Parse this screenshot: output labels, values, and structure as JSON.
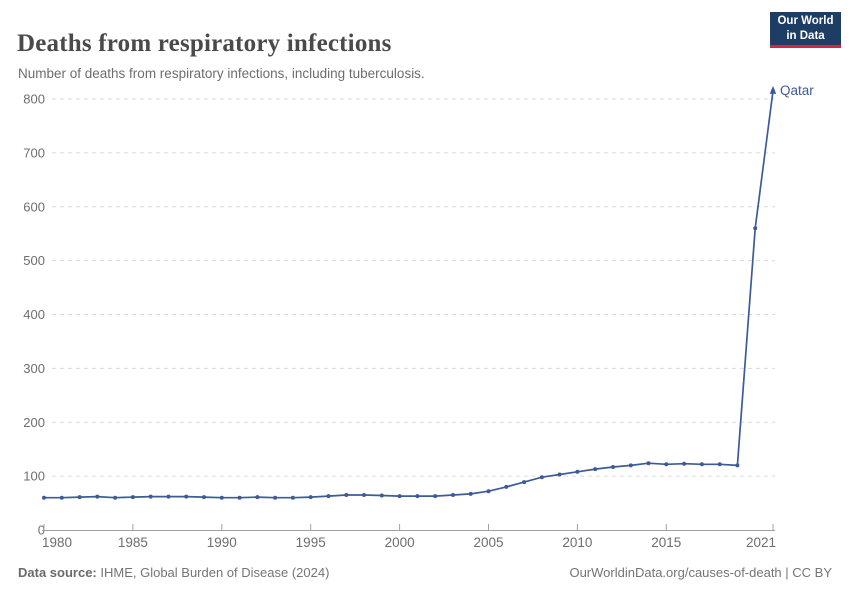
{
  "header": {
    "title": "Deaths from respiratory infections",
    "subtitle": "Number of deaths from respiratory infections, including tuberculosis."
  },
  "logo": {
    "line1": "Our World",
    "line2": "in Data",
    "bg_color": "#1d3d63",
    "accent_color": "#d5263a"
  },
  "footer": {
    "source_label": "Data source:",
    "source_value": " IHME, Global Burden of Disease (2024)",
    "license_text": "OurWorldinData.org/causes-of-death | CC BY"
  },
  "chart_data": {
    "type": "line",
    "title": "Deaths from respiratory infections",
    "subtitle": "Number of deaths from respiratory infections, including tuberculosis.",
    "x": [
      1980,
      1981,
      1982,
      1983,
      1984,
      1985,
      1986,
      1987,
      1988,
      1989,
      1990,
      1991,
      1992,
      1993,
      1994,
      1995,
      1996,
      1997,
      1998,
      1999,
      2000,
      2001,
      2002,
      2003,
      2004,
      2005,
      2006,
      2007,
      2008,
      2009,
      2010,
      2011,
      2012,
      2013,
      2014,
      2015,
      2016,
      2017,
      2018,
      2019,
      2020,
      2021
    ],
    "series": [
      {
        "name": "Qatar",
        "color": "#3d5b96",
        "values": [
          60,
          60,
          61,
          62,
          60,
          61,
          62,
          62,
          62,
          61,
          60,
          60,
          61,
          60,
          60,
          61,
          63,
          65,
          65,
          64,
          63,
          63,
          63,
          65,
          67,
          72,
          80,
          89,
          98,
          103,
          108,
          113,
          117,
          120,
          124,
          122,
          123,
          122,
          122,
          120,
          560,
          815
        ]
      }
    ],
    "xlabel": "",
    "ylabel": "",
    "ylim": [
      0,
      800
    ],
    "yticks": [
      0,
      100,
      200,
      300,
      400,
      500,
      600,
      700,
      800
    ],
    "xticks": [
      1980,
      1985,
      1990,
      1995,
      2000,
      2005,
      2010,
      2015,
      2021
    ],
    "grid": "horizontal-dashed",
    "legend": "line-end-label",
    "grid_color": "#dadada",
    "axis_color": "#a1a1a1",
    "tick_label_color": "#6e6e6e"
  }
}
